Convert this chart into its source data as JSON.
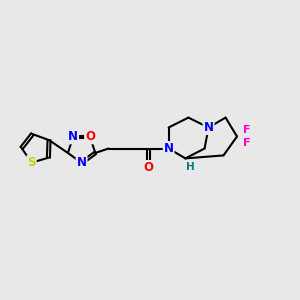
{
  "bg_color": "#e8e8e8",
  "atom_colors": {
    "N": "#0000ff",
    "O": "#ff0000",
    "S": "#cccc00",
    "F": "#ff00cc",
    "H": "#008080",
    "C": "#000000"
  },
  "bond_color": "#000000",
  "line_width": 1.5,
  "figsize": [
    3.0,
    3.0
  ],
  "dpi": 100,
  "xlim": [
    0,
    10
  ],
  "ylim": [
    2,
    8
  ]
}
